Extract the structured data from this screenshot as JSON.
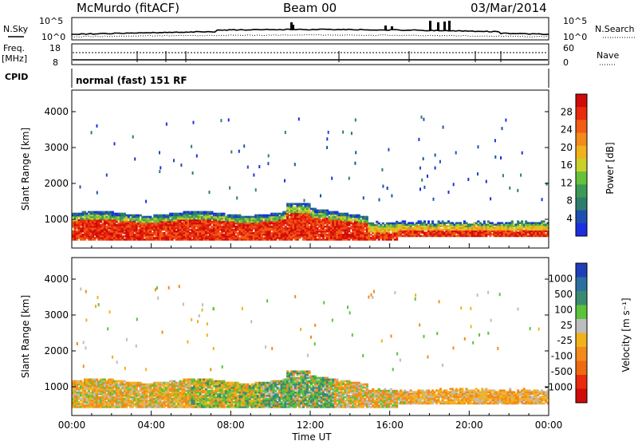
{
  "header": {
    "title": "McMurdo (fitACF)",
    "beam": "Beam 00",
    "date": "03/Mar/2014"
  },
  "strip": {
    "nsky_label": "N.Sky",
    "nsearch_label": "N.Search",
    "noise_ticks_left": [
      "10^5",
      "10^0"
    ],
    "noise_ticks_right": [
      "10^5",
      "10^0"
    ],
    "freq_label": "Freq.",
    "freq_unit": "[MHz]",
    "freq_ticks": [
      "18",
      "8"
    ],
    "nave_label": "Nave",
    "nave_ticks": [
      "60",
      "0"
    ],
    "cpid_label": "CPID",
    "cpid_text": "normal (fast) 151 RF"
  },
  "chart_data": [
    {
      "type": "heatmap",
      "name": "power",
      "ylabel": "Slant Range [km]",
      "yticks": [
        "1000",
        "2000",
        "3000",
        "4000"
      ],
      "ylim": [
        200,
        4600
      ],
      "colorbar_label": "Power [dB]",
      "colorbar_ticks": [
        "4",
        "8",
        "12",
        "16",
        "20",
        "24",
        "28"
      ],
      "colors": [
        "#1c2fe0",
        "#1f4fb0",
        "#2e7d6a",
        "#3d9a56",
        "#66c23a",
        "#c7d12a",
        "#f2b21c",
        "#f28a1c",
        "#f25c14",
        "#e82a0e",
        "#d10a0a"
      ]
    },
    {
      "type": "heatmap",
      "name": "velocity",
      "ylabel": "Slant Range [km]",
      "yticks": [
        "1000",
        "2000",
        "3000",
        "4000"
      ],
      "ylim": [
        200,
        4600
      ],
      "colorbar_label": "Velocity [m s⁻¹]",
      "colorbar_ticks": [
        "1000",
        "500",
        "100",
        "25",
        "-25",
        "-100",
        "-500",
        "-1000"
      ],
      "colors": [
        "#1f3fb8",
        "#2d6fa0",
        "#3a8a70",
        "#5cc23a",
        "#bdbdbd",
        "#f2b21c",
        "#f28a1c",
        "#ee6a10",
        "#e82a0e",
        "#d10a0a"
      ]
    }
  ],
  "xaxis": {
    "label": "Time UT",
    "ticks": [
      "00:00",
      "04:00",
      "08:00",
      "12:00",
      "16:00",
      "20:00",
      "00:00"
    ]
  }
}
